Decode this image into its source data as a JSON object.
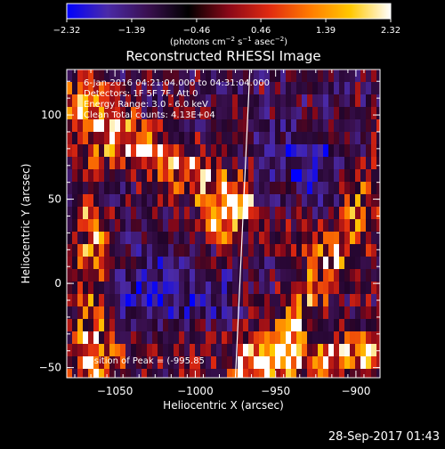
{
  "chart_data": {
    "type": "heatmap",
    "title": "Reconstructed RHESSI Image",
    "xlabel": "Heliocentric X (arcsec)",
    "ylabel": "Heliocentric Y (arcsec)",
    "xlim": [
      -1080,
      -885
    ],
    "ylim": [
      -56,
      127
    ],
    "x_ticks": [
      {
        "value": -1050,
        "label": "−1050"
      },
      {
        "value": -1000,
        "label": "−1000"
      },
      {
        "value": -950,
        "label": "−950"
      },
      {
        "value": -900,
        "label": "−900"
      }
    ],
    "y_ticks": [
      {
        "value": -50,
        "label": "−50"
      },
      {
        "value": 0,
        "label": "0"
      },
      {
        "value": 50,
        "label": "50"
      },
      {
        "value": 100,
        "label": "100"
      }
    ],
    "colorbar": {
      "range": [
        -2.32,
        2.32
      ],
      "ticks": [
        {
          "value": -2.32,
          "label": "−2.32"
        },
        {
          "value": -1.39,
          "label": "−1.39"
        },
        {
          "value": -0.46,
          "label": "−0.46"
        },
        {
          "value": 0.46,
          "label": "0.46"
        },
        {
          "value": 1.39,
          "label": "1.39"
        },
        {
          "value": 2.32,
          "label": "2.32"
        }
      ],
      "colors": [
        "#0000ff",
        "#4a2aa8",
        "#3a1050",
        "#000000",
        "#8a0818",
        "#e02a10",
        "#ff7a00",
        "#ffc800",
        "#ffffff"
      ],
      "units_prefix": "(photons cm",
      "units_exp1": "−2",
      "units_mid1": " s",
      "units_exp2": "−1",
      "units_mid2": " asec",
      "units_exp3": "−2",
      "units_suffix": ")"
    },
    "annotations": [
      "6-Jan-2016 04:21:04.000 to 04:31:04.000",
      "Detectors: 1F 5F 7F, Att 0",
      "Energy Range: 3.0 - 6.0 keV",
      "Clean    Total counts: 4.13E+04"
    ],
    "peak_label": "Position of Peak = (-995.85",
    "limb_line": {
      "x_top": -966,
      "x_bottom": -975
    },
    "grid": false
  },
  "footer": {
    "timestamp": "28-Sep-2017 01:43"
  }
}
